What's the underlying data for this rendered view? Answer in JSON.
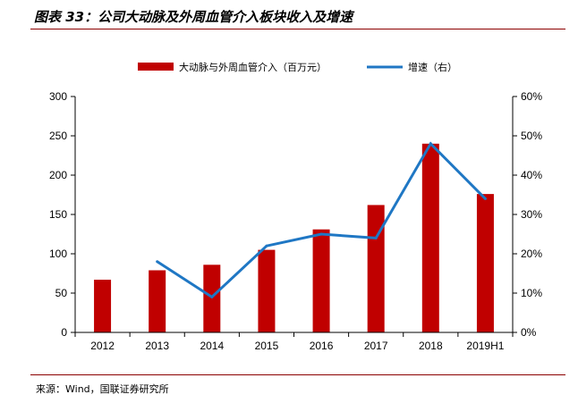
{
  "title": "图表 33：公司大动脉及外周血管介入板块收入及增速",
  "source": "来源：Wind，国联证券研究所",
  "chart_data": {
    "type": "bar",
    "title": "图表 33：公司大动脉及外周血管介入板块收入及增速",
    "categories": [
      "2012",
      "2013",
      "2014",
      "2015",
      "2016",
      "2017",
      "2018",
      "2019H1"
    ],
    "series": [
      {
        "name": "大动脉与外周血管介入（百万元）",
        "type": "bar",
        "axis": "left",
        "color": "#c00000",
        "values": [
          67,
          79,
          86,
          105,
          131,
          162,
          240,
          176
        ]
      },
      {
        "name": "增速（右）",
        "type": "line",
        "axis": "right",
        "color": "#1f77c4",
        "values": [
          null,
          0.18,
          0.09,
          0.22,
          0.25,
          0.24,
          0.48,
          0.34
        ]
      }
    ],
    "y_left": {
      "min": 0,
      "max": 300,
      "ticks": [
        0,
        50,
        100,
        150,
        200,
        250,
        300
      ]
    },
    "y_right": {
      "min": 0,
      "max": 0.6,
      "ticks": [
        "0%",
        "10%",
        "20%",
        "30%",
        "40%",
        "50%",
        "60%"
      ]
    },
    "legend_position": "top-center",
    "grid": false
  }
}
